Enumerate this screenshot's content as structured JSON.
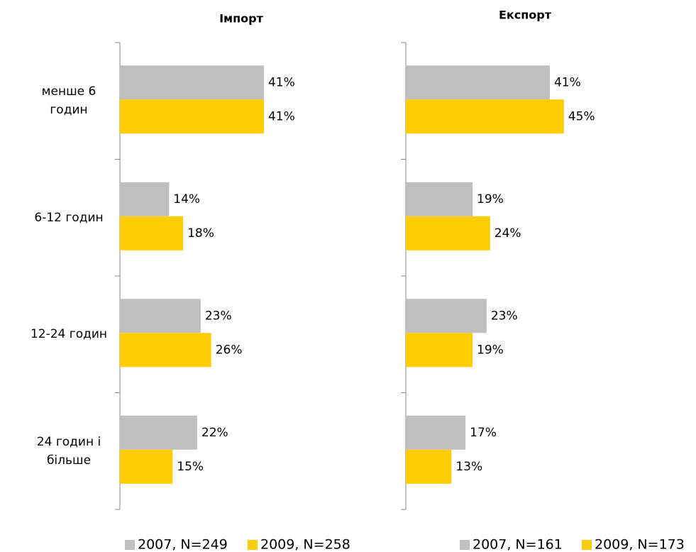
{
  "chart_data": [
    {
      "type": "hbar",
      "title": "Імпорт",
      "categories": [
        "менше 6 годин",
        "6-12 годин",
        "12-24 годин",
        "24 годин і більше"
      ],
      "series": [
        {
          "name": "2007, N=249",
          "color": "#bfbfbf",
          "values": [
            41,
            14,
            23,
            22
          ],
          "value_labels": [
            "41%",
            "14%",
            "23%",
            "22%"
          ]
        },
        {
          "name": "2009, N=258",
          "color": "#ffcc00",
          "values": [
            41,
            18,
            26,
            15
          ],
          "value_labels": [
            "41%",
            "18%",
            "26%",
            "15%"
          ]
        }
      ],
      "xlim": [
        0,
        100
      ]
    },
    {
      "type": "hbar",
      "title": "Експорт",
      "series": [
        {
          "name": "2007, N=161",
          "color": "#bfbfbf",
          "values": [
            41,
            19,
            23,
            17
          ],
          "value_labels": [
            "41%",
            "19%",
            "23%",
            "17%"
          ]
        },
        {
          "name": "2009, N=173",
          "color": "#ffcc00",
          "values": [
            45,
            24,
            19,
            13
          ],
          "value_labels": [
            "45%",
            "24%",
            "19%",
            "13%"
          ]
        }
      ],
      "xlim": [
        0,
        100
      ]
    }
  ]
}
